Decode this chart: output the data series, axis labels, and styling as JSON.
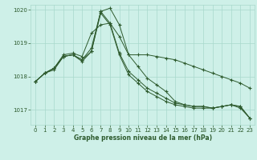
{
  "background_color": "#cef0e8",
  "grid_color": "#a8d8cc",
  "line_color": "#2d5a2d",
  "title": "Graphe pression niveau de la mer (hPa)",
  "xlim": [
    -0.5,
    23.5
  ],
  "ylim": [
    1016.55,
    1020.15
  ],
  "yticks": [
    1017,
    1018,
    1019,
    1020
  ],
  "xticks": [
    0,
    1,
    2,
    3,
    4,
    5,
    6,
    7,
    8,
    9,
    10,
    11,
    12,
    13,
    14,
    15,
    16,
    17,
    18,
    19,
    20,
    21,
    22,
    23
  ],
  "series": [
    [
      1017.85,
      1018.1,
      1018.25,
      1018.6,
      1018.65,
      1018.5,
      1018.75,
      1019.95,
      1020.05,
      1019.55,
      1018.65,
      1018.65,
      1018.65,
      1018.6,
      1018.55,
      1018.5,
      1018.4,
      1018.3,
      1018.2,
      1018.1,
      1018.0,
      1017.9,
      1017.8,
      1017.65
    ],
    [
      1017.85,
      1018.1,
      1018.25,
      1018.65,
      1018.7,
      1018.6,
      1019.3,
      1019.55,
      1019.6,
      1019.2,
      1018.65,
      1018.3,
      1017.95,
      1017.75,
      1017.55,
      1017.25,
      1017.15,
      1017.1,
      1017.1,
      1017.05,
      1017.1,
      1017.15,
      1017.1,
      1016.75
    ],
    [
      1017.85,
      1018.1,
      1018.25,
      1018.6,
      1018.65,
      1018.5,
      1018.85,
      1019.95,
      1019.6,
      1018.7,
      1018.15,
      1017.9,
      1017.65,
      1017.5,
      1017.35,
      1017.2,
      1017.15,
      1017.1,
      1017.1,
      1017.05,
      1017.1,
      1017.15,
      1017.1,
      1016.75
    ],
    [
      1017.85,
      1018.1,
      1018.2,
      1018.6,
      1018.65,
      1018.45,
      1018.75,
      1019.9,
      1019.55,
      1018.65,
      1018.05,
      1017.8,
      1017.55,
      1017.4,
      1017.25,
      1017.15,
      1017.1,
      1017.05,
      1017.05,
      1017.05,
      1017.1,
      1017.15,
      1017.05,
      1016.75
    ]
  ]
}
